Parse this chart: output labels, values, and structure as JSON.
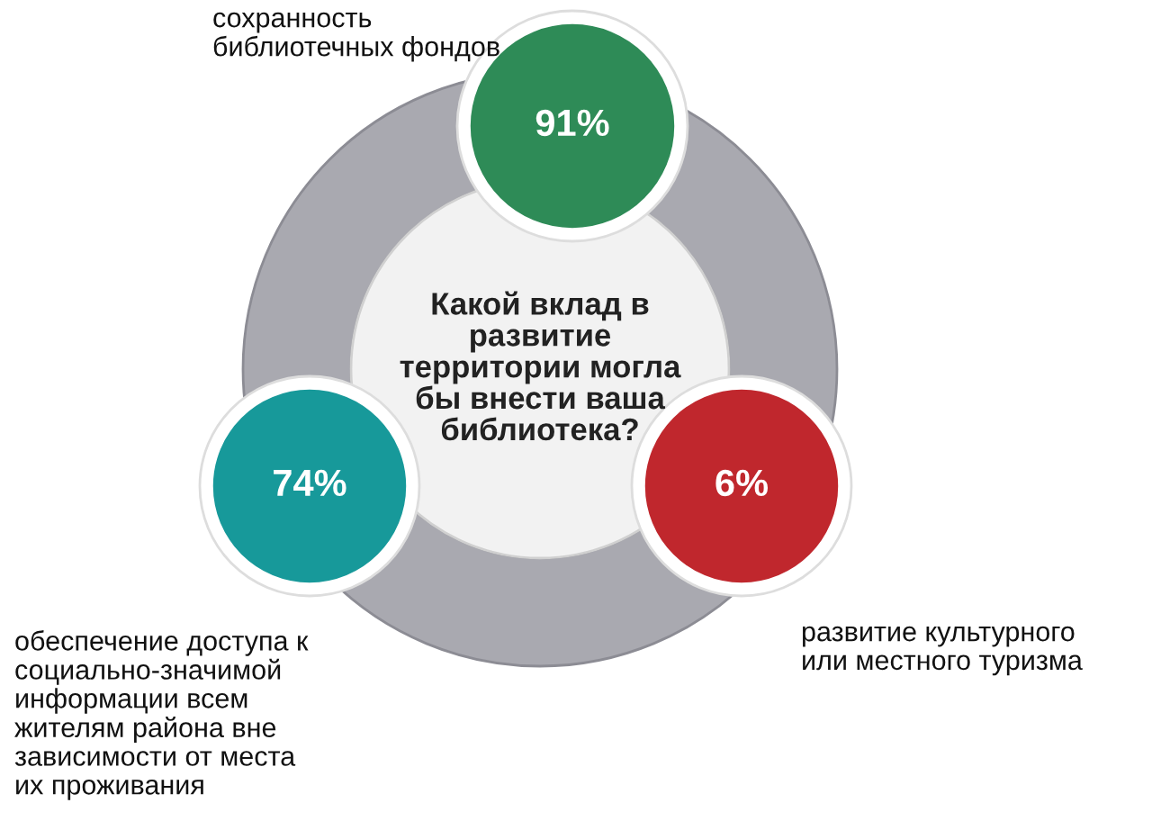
{
  "chart_data": {
    "type": "other",
    "title": "Какой вклад в\nразвитие\nтерритории могла\nбы внести ваша\nбиблиотека?",
    "categories": [
      "сохранность\nбиблиотечных фондов",
      "обеспечение доступа к\nсоциально-значимой\nинформации всем\nжителям района вне\nзависимости от места\nих проживания",
      "развитие культурного\nили местного туризма"
    ],
    "values": [
      91,
      74,
      6
    ],
    "value_labels": [
      "91%",
      "74%",
      "6%"
    ],
    "colors": [
      "#2e8b57",
      "#17999a",
      "#c0272d"
    ]
  }
}
